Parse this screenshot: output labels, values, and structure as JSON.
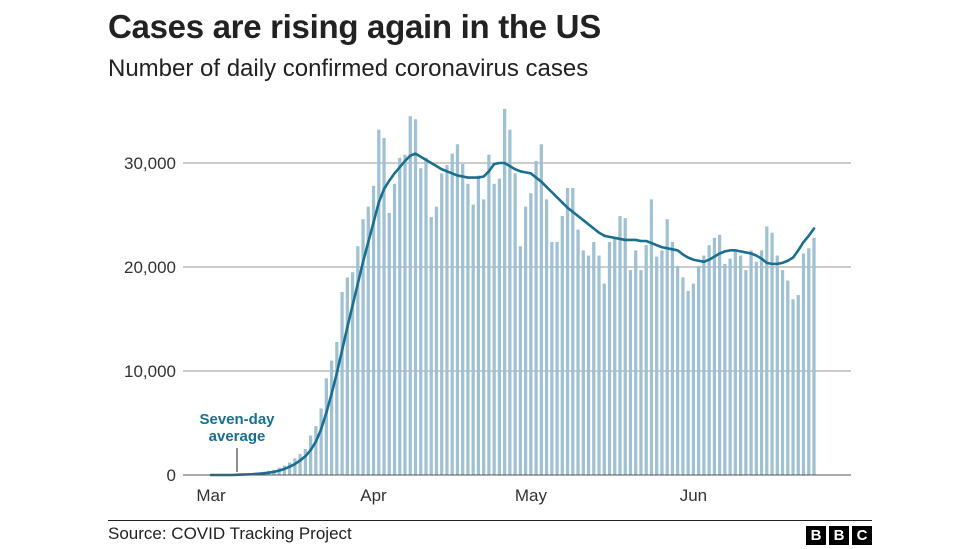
{
  "header": {
    "title": "Cases are rising again in the US",
    "subtitle": "Number of daily confirmed coronavirus cases"
  },
  "footer": {
    "source": "Source: COVID Tracking Project",
    "logo_letters": [
      "B",
      "B",
      "C"
    ]
  },
  "colors": {
    "bar": "#9fc1d2",
    "line": "#1a6e8e",
    "annotation": "#1a6e8e",
    "grid": "#999999"
  },
  "chart_data": {
    "type": "bar",
    "title": "Cases are rising again in the US",
    "subtitle": "Number of daily confirmed coronavirus cases",
    "xlabel": "",
    "ylabel": "",
    "ylim": [
      0,
      35000
    ],
    "yticks": [
      0,
      10000,
      20000,
      30000
    ],
    "ytick_labels": [
      "0",
      "10,000",
      "20,000",
      "30,000"
    ],
    "xtick_labels": [
      "Mar",
      "Apr",
      "May",
      "Jun"
    ],
    "grid": true,
    "annotation": {
      "lines": [
        "Seven-day",
        "average"
      ]
    },
    "x_range": [
      "2020-03-01",
      "2020-06-24"
    ],
    "x": [
      "2020-03-01",
      "2020-03-02",
      "2020-03-03",
      "2020-03-04",
      "2020-03-05",
      "2020-03-06",
      "2020-03-07",
      "2020-03-08",
      "2020-03-09",
      "2020-03-10",
      "2020-03-11",
      "2020-03-12",
      "2020-03-13",
      "2020-03-14",
      "2020-03-15",
      "2020-03-16",
      "2020-03-17",
      "2020-03-18",
      "2020-03-19",
      "2020-03-20",
      "2020-03-21",
      "2020-03-22",
      "2020-03-23",
      "2020-03-24",
      "2020-03-25",
      "2020-03-26",
      "2020-03-27",
      "2020-03-28",
      "2020-03-29",
      "2020-03-30",
      "2020-03-31",
      "2020-04-01",
      "2020-04-02",
      "2020-04-03",
      "2020-04-04",
      "2020-04-05",
      "2020-04-06",
      "2020-04-07",
      "2020-04-08",
      "2020-04-09",
      "2020-04-10",
      "2020-04-11",
      "2020-04-12",
      "2020-04-13",
      "2020-04-14",
      "2020-04-15",
      "2020-04-16",
      "2020-04-17",
      "2020-04-18",
      "2020-04-19",
      "2020-04-20",
      "2020-04-21",
      "2020-04-22",
      "2020-04-23",
      "2020-04-24",
      "2020-04-25",
      "2020-04-26",
      "2020-04-27",
      "2020-04-28",
      "2020-04-29",
      "2020-04-30",
      "2020-05-01",
      "2020-05-02",
      "2020-05-03",
      "2020-05-04",
      "2020-05-05",
      "2020-05-06",
      "2020-05-07",
      "2020-05-08",
      "2020-05-09",
      "2020-05-10",
      "2020-05-11",
      "2020-05-12",
      "2020-05-13",
      "2020-05-14",
      "2020-05-15",
      "2020-05-16",
      "2020-05-17",
      "2020-05-18",
      "2020-05-19",
      "2020-05-20",
      "2020-05-21",
      "2020-05-22",
      "2020-05-23",
      "2020-05-24",
      "2020-05-25",
      "2020-05-26",
      "2020-05-27",
      "2020-05-28",
      "2020-05-29",
      "2020-05-30",
      "2020-05-31",
      "2020-06-01",
      "2020-06-02",
      "2020-06-03",
      "2020-06-04",
      "2020-06-05",
      "2020-06-06",
      "2020-06-07",
      "2020-06-08",
      "2020-06-09",
      "2020-06-10",
      "2020-06-11",
      "2020-06-12",
      "2020-06-13",
      "2020-06-14",
      "2020-06-15",
      "2020-06-16",
      "2020-06-17",
      "2020-06-18",
      "2020-06-19",
      "2020-06-20",
      "2020-06-21",
      "2020-06-22",
      "2020-06-23",
      "2020-06-24"
    ],
    "series": [
      {
        "type": "bar",
        "values": [
          0,
          0,
          0,
          0,
          0,
          100,
          100,
          150,
          150,
          250,
          300,
          400,
          500,
          700,
          900,
          1200,
          1600,
          2000,
          2500,
          3800,
          4700,
          6400,
          9300,
          11000,
          12800,
          17600,
          19000,
          19500,
          22000,
          24600,
          25800,
          27800,
          33200,
          32400,
          25200,
          28000,
          30500,
          30800,
          34500,
          34200,
          29500,
          30500,
          24800,
          25800,
          29000,
          29800,
          30900,
          31800,
          29900,
          28000,
          26000,
          28800,
          26500,
          30800,
          28000,
          28500,
          35200,
          33200,
          29000,
          22000,
          25800,
          27100,
          30200,
          31800,
          26500,
          22400,
          22400,
          24900,
          27600,
          27600,
          23600,
          21600,
          21100,
          22400,
          21100,
          18400,
          22400,
          22900,
          24900,
          24700,
          19700,
          21600,
          19700,
          22100,
          26500,
          21000,
          21600,
          24600,
          22400,
          20100,
          19000,
          17700,
          18400,
          20100,
          21100,
          22100,
          22800,
          23100,
          20300,
          20800,
          21600,
          21100,
          19700,
          21600,
          20500,
          21600,
          23900,
          23300,
          21100,
          19700,
          18700,
          16900,
          17300,
          21300,
          21800,
          22800
        ]
      },
      {
        "type": "line",
        "values": [
          0,
          0,
          0,
          0,
          0,
          20,
          40,
          60,
          80,
          120,
          160,
          220,
          300,
          420,
          580,
          800,
          1050,
          1400,
          1800,
          2400,
          3200,
          4400,
          6000,
          7800,
          9800,
          12000,
          14200,
          16300,
          18400,
          20500,
          22400,
          24300,
          26200,
          27500,
          28300,
          29000,
          29600,
          30200,
          30700,
          30900,
          30600,
          30300,
          30000,
          29700,
          29400,
          29200,
          29000,
          28800,
          28700,
          28600,
          28600,
          28600,
          28700,
          29200,
          29900,
          30000,
          30000,
          29700,
          29400,
          29200,
          29100,
          29000,
          28600,
          28200,
          27700,
          27200,
          26700,
          26200,
          25700,
          25300,
          24900,
          24500,
          24100,
          23700,
          23300,
          23000,
          22900,
          22800,
          22700,
          22600,
          22600,
          22600,
          22500,
          22500,
          22300,
          22100,
          21900,
          21800,
          21700,
          21600,
          21200,
          20900,
          20700,
          20600,
          20500,
          20700,
          21000,
          21300,
          21500,
          21600,
          21600,
          21500,
          21400,
          21300,
          21100,
          20800,
          20400,
          20300,
          20300,
          20400,
          20600,
          20900,
          21600,
          22400,
          23000,
          23700
        ]
      }
    ]
  }
}
